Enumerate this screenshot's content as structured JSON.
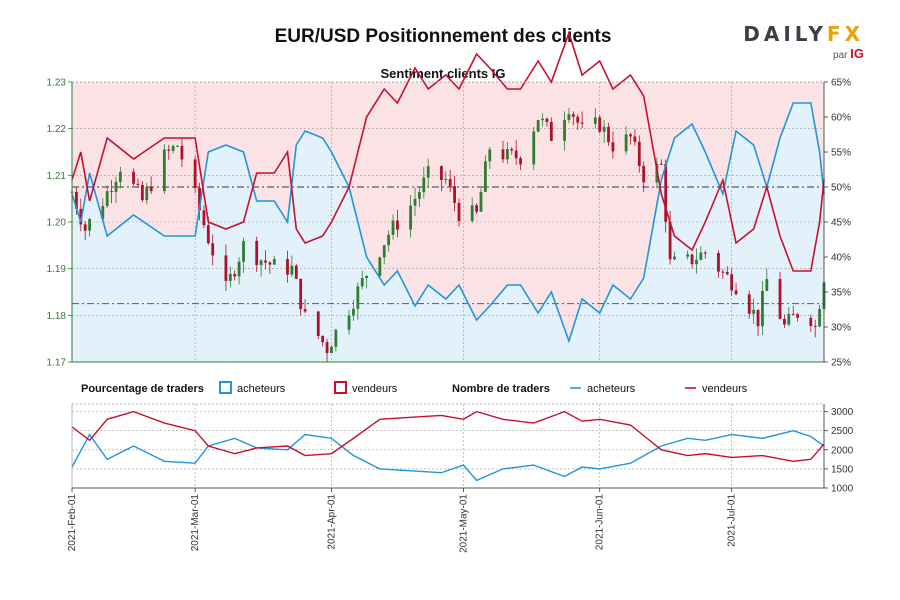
{
  "title": "EUR/USD Positionnement des clients",
  "logo": {
    "brand_pre": "DAILY",
    "brand_post": "FX",
    "sub_pre": "par",
    "sub_brand": "IG"
  },
  "colors": {
    "buyers": "#1f96dc",
    "sellers": "#c8102e",
    "up_candle": "#2e7d32",
    "down_candle": "#b0102a",
    "bull_band": "#e3f1fa",
    "bear_band": "#fbe3e5",
    "axis_left": "#2e7d32",
    "grid": "#9a9a9a",
    "ref_line": "#5a5a6a"
  },
  "chart_data": [
    {
      "type": "candlestick",
      "title": "Sentiment clients IG",
      "y_left": {
        "ylim": [
          1.17,
          1.23
        ],
        "ticks": [
          "1.17",
          "1.18",
          "1.19",
          "1.20",
          "1.21",
          "1.22",
          "1.23"
        ]
      },
      "y_right": {
        "ylim": [
          25,
          65
        ],
        "ticks": [
          "25%",
          "30%",
          "35%",
          "40%",
          "45%",
          "50%",
          "55%",
          "60%",
          "65%"
        ]
      },
      "x_range": [
        "2021-02-01",
        "2021-07-22"
      ],
      "x_ticks": [
        "2021-Feb-01",
        "2021-Mar-01",
        "2021-Apr-01",
        "2021-May-01",
        "2021-Jun-01",
        "2021-Jul-01"
      ],
      "reference_lines": {
        "pct": 50,
        "price": 1.1825
      },
      "close_points": [
        [
          "2021-02-01",
          1.2065
        ],
        [
          "2021-02-04",
          1.1985
        ],
        [
          "2021-02-08",
          1.2045
        ],
        [
          "2021-02-12",
          1.212
        ],
        [
          "2021-02-17",
          1.2045
        ],
        [
          "2021-02-22",
          1.214
        ],
        [
          "2021-02-25",
          1.2165
        ],
        [
          "2021-03-01",
          1.2055
        ],
        [
          "2021-03-04",
          1.1965
        ],
        [
          "2021-03-08",
          1.1855
        ],
        [
          "2021-03-12",
          1.195
        ],
        [
          "2021-03-16",
          1.192
        ],
        [
          "2021-03-19",
          1.1905
        ],
        [
          "2021-03-23",
          1.19
        ],
        [
          "2021-03-26",
          1.1795
        ],
        [
          "2021-03-31",
          1.173
        ],
        [
          "2021-04-05",
          1.1815
        ],
        [
          "2021-04-09",
          1.189
        ],
        [
          "2021-04-14",
          1.1975
        ],
        [
          "2021-04-19",
          1.2035
        ],
        [
          "2021-04-23",
          1.21
        ],
        [
          "2021-04-27",
          1.209
        ],
        [
          "2021-04-30",
          1.202
        ],
        [
          "2021-05-04",
          1.2015
        ],
        [
          "2021-05-07",
          1.216
        ],
        [
          "2021-05-11",
          1.214
        ],
        [
          "2021-05-14",
          1.214
        ],
        [
          "2021-05-18",
          1.2225
        ],
        [
          "2021-05-21",
          1.2185
        ],
        [
          "2021-05-25",
          1.225
        ],
        [
          "2021-05-28",
          1.2195
        ],
        [
          "2021-06-01",
          1.221
        ],
        [
          "2021-06-04",
          1.2165
        ],
        [
          "2021-06-08",
          1.218
        ],
        [
          "2021-06-11",
          1.21
        ],
        [
          "2021-06-15",
          1.212
        ],
        [
          "2021-06-17",
          1.191
        ],
        [
          "2021-06-21",
          1.1915
        ],
        [
          "2021-06-25",
          1.1935
        ],
        [
          "2021-06-29",
          1.189
        ],
        [
          "2021-07-02",
          1.1865
        ],
        [
          "2021-07-07",
          1.179
        ],
        [
          "2021-07-09",
          1.1875
        ],
        [
          "2021-07-13",
          1.1775
        ],
        [
          "2021-07-16",
          1.1805
        ],
        [
          "2021-07-19",
          1.1795
        ],
        [
          "2021-07-20",
          1.1775
        ],
        [
          "2021-07-22",
          1.1885
        ]
      ],
      "buyers_pct": [
        [
          "2021-02-01",
          49
        ],
        [
          "2021-02-03",
          45
        ],
        [
          "2021-02-05",
          52
        ],
        [
          "2021-02-09",
          43
        ],
        [
          "2021-02-15",
          46
        ],
        [
          "2021-02-22",
          43
        ],
        [
          "2021-03-01",
          43
        ],
        [
          "2021-03-04",
          55
        ],
        [
          "2021-03-08",
          56
        ],
        [
          "2021-03-12",
          55
        ],
        [
          "2021-03-15",
          48
        ],
        [
          "2021-03-19",
          48
        ],
        [
          "2021-03-22",
          45
        ],
        [
          "2021-03-24",
          56
        ],
        [
          "2021-03-26",
          58
        ],
        [
          "2021-03-30",
          57
        ],
        [
          "2021-04-01",
          55
        ],
        [
          "2021-04-05",
          50
        ],
        [
          "2021-04-09",
          40
        ],
        [
          "2021-04-13",
          36
        ],
        [
          "2021-04-16",
          38
        ],
        [
          "2021-04-20",
          33
        ],
        [
          "2021-04-23",
          36
        ],
        [
          "2021-04-27",
          34
        ],
        [
          "2021-04-30",
          36
        ],
        [
          "2021-05-04",
          31
        ],
        [
          "2021-05-07",
          33
        ],
        [
          "2021-05-11",
          36
        ],
        [
          "2021-05-14",
          36
        ],
        [
          "2021-05-18",
          32
        ],
        [
          "2021-05-21",
          35
        ],
        [
          "2021-05-25",
          28
        ],
        [
          "2021-05-28",
          34
        ],
        [
          "2021-06-01",
          32
        ],
        [
          "2021-06-04",
          36
        ],
        [
          "2021-06-08",
          34
        ],
        [
          "2021-06-11",
          37
        ],
        [
          "2021-06-15",
          51
        ],
        [
          "2021-06-18",
          57
        ],
        [
          "2021-06-22",
          59
        ],
        [
          "2021-06-25",
          55
        ],
        [
          "2021-06-29",
          49
        ],
        [
          "2021-07-02",
          58
        ],
        [
          "2021-07-06",
          56
        ],
        [
          "2021-07-09",
          50
        ],
        [
          "2021-07-12",
          57
        ],
        [
          "2021-07-15",
          62
        ],
        [
          "2021-07-19",
          62
        ],
        [
          "2021-07-21",
          55
        ],
        [
          "2021-07-22",
          49
        ]
      ],
      "sellers_pct": [
        [
          "2021-02-01",
          51
        ],
        [
          "2021-02-03",
          55
        ],
        [
          "2021-02-05",
          48
        ],
        [
          "2021-02-09",
          57
        ],
        [
          "2021-02-15",
          54
        ],
        [
          "2021-02-22",
          57
        ],
        [
          "2021-03-01",
          57
        ],
        [
          "2021-03-04",
          45
        ],
        [
          "2021-03-08",
          44
        ],
        [
          "2021-03-12",
          45
        ],
        [
          "2021-03-15",
          52
        ],
        [
          "2021-03-19",
          52
        ],
        [
          "2021-03-22",
          55
        ],
        [
          "2021-03-24",
          44
        ],
        [
          "2021-03-26",
          42
        ],
        [
          "2021-03-30",
          43
        ],
        [
          "2021-04-01",
          45
        ],
        [
          "2021-04-05",
          50
        ],
        [
          "2021-04-09",
          60
        ],
        [
          "2021-04-13",
          64
        ],
        [
          "2021-04-16",
          62
        ],
        [
          "2021-04-20",
          67
        ],
        [
          "2021-04-23",
          64
        ],
        [
          "2021-04-27",
          66
        ],
        [
          "2021-04-30",
          64
        ],
        [
          "2021-05-04",
          69
        ],
        [
          "2021-05-07",
          67
        ],
        [
          "2021-05-11",
          64
        ],
        [
          "2021-05-14",
          64
        ],
        [
          "2021-05-18",
          68
        ],
        [
          "2021-05-21",
          65
        ],
        [
          "2021-05-25",
          72
        ],
        [
          "2021-05-28",
          66
        ],
        [
          "2021-06-01",
          68
        ],
        [
          "2021-06-04",
          64
        ],
        [
          "2021-06-08",
          66
        ],
        [
          "2021-06-11",
          63
        ],
        [
          "2021-06-15",
          49
        ],
        [
          "2021-06-18",
          43
        ],
        [
          "2021-06-22",
          41
        ],
        [
          "2021-06-25",
          45
        ],
        [
          "2021-06-29",
          51
        ],
        [
          "2021-07-02",
          42
        ],
        [
          "2021-07-06",
          44
        ],
        [
          "2021-07-09",
          50
        ],
        [
          "2021-07-12",
          43
        ],
        [
          "2021-07-15",
          38
        ],
        [
          "2021-07-19",
          38
        ],
        [
          "2021-07-21",
          45
        ],
        [
          "2021-07-22",
          51
        ]
      ]
    },
    {
      "type": "line",
      "legend": {
        "pct_title": "Pourcentage de traders",
        "pct_buyers": "acheteurs",
        "pct_sellers": "vendeurs",
        "count_title": "Nombre de traders",
        "count_buyers": "acheteurs",
        "count_sellers": "vendeurs"
      },
      "ylim": [
        1000,
        3200
      ],
      "y_ticks": [
        "1000",
        "1500",
        "2000",
        "2500",
        "3000"
      ],
      "buyers_count": [
        [
          "2021-02-01",
          1550
        ],
        [
          "2021-02-05",
          2400
        ],
        [
          "2021-02-09",
          1750
        ],
        [
          "2021-02-15",
          2100
        ],
        [
          "2021-02-22",
          1700
        ],
        [
          "2021-03-01",
          1650
        ],
        [
          "2021-03-04",
          2100
        ],
        [
          "2021-03-10",
          2300
        ],
        [
          "2021-03-15",
          2050
        ],
        [
          "2021-03-22",
          2000
        ],
        [
          "2021-03-26",
          2400
        ],
        [
          "2021-04-01",
          2300
        ],
        [
          "2021-04-06",
          1850
        ],
        [
          "2021-04-12",
          1500
        ],
        [
          "2021-04-19",
          1450
        ],
        [
          "2021-04-26",
          1400
        ],
        [
          "2021-05-01",
          1600
        ],
        [
          "2021-05-04",
          1200
        ],
        [
          "2021-05-10",
          1500
        ],
        [
          "2021-05-17",
          1600
        ],
        [
          "2021-05-24",
          1300
        ],
        [
          "2021-05-28",
          1550
        ],
        [
          "2021-06-01",
          1500
        ],
        [
          "2021-06-08",
          1650
        ],
        [
          "2021-06-15",
          2100
        ],
        [
          "2021-06-21",
          2300
        ],
        [
          "2021-06-25",
          2250
        ],
        [
          "2021-07-01",
          2400
        ],
        [
          "2021-07-08",
          2300
        ],
        [
          "2021-07-15",
          2500
        ],
        [
          "2021-07-19",
          2350
        ],
        [
          "2021-07-22",
          2100
        ]
      ],
      "sellers_count": [
        [
          "2021-02-01",
          2600
        ],
        [
          "2021-02-05",
          2250
        ],
        [
          "2021-02-09",
          2800
        ],
        [
          "2021-02-15",
          3000
        ],
        [
          "2021-02-22",
          2700
        ],
        [
          "2021-03-01",
          2500
        ],
        [
          "2021-03-04",
          2100
        ],
        [
          "2021-03-10",
          1900
        ],
        [
          "2021-03-15",
          2050
        ],
        [
          "2021-03-22",
          2100
        ],
        [
          "2021-03-26",
          1850
        ],
        [
          "2021-04-01",
          1900
        ],
        [
          "2021-04-06",
          2300
        ],
        [
          "2021-04-12",
          2800
        ],
        [
          "2021-04-19",
          2850
        ],
        [
          "2021-04-26",
          2900
        ],
        [
          "2021-05-01",
          2800
        ],
        [
          "2021-05-04",
          3000
        ],
        [
          "2021-05-10",
          2800
        ],
        [
          "2021-05-17",
          2700
        ],
        [
          "2021-05-24",
          3000
        ],
        [
          "2021-05-28",
          2750
        ],
        [
          "2021-06-01",
          2800
        ],
        [
          "2021-06-08",
          2650
        ],
        [
          "2021-06-15",
          2000
        ],
        [
          "2021-06-21",
          1850
        ],
        [
          "2021-06-25",
          1900
        ],
        [
          "2021-07-01",
          1800
        ],
        [
          "2021-07-08",
          1850
        ],
        [
          "2021-07-15",
          1700
        ],
        [
          "2021-07-19",
          1750
        ],
        [
          "2021-07-22",
          2150
        ]
      ]
    }
  ]
}
